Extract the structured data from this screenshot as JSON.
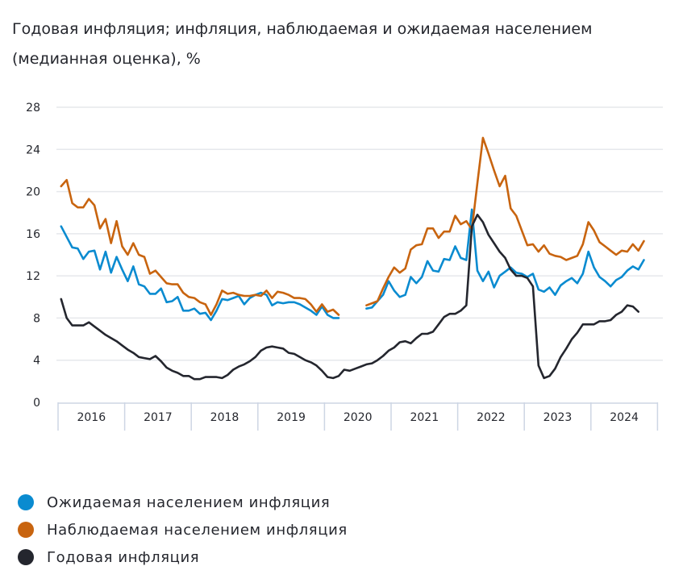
{
  "title": "Годовая инфляция; инфляция, наблюдаемая и ожидаемая населением (медианная оценка), %",
  "chart_data": {
    "type": "line",
    "title": "Годовая инфляция; инфляция, наблюдаемая и ожидаемая населением (медианная оценка), %",
    "xlabel": "",
    "ylabel": "",
    "x_start": "2016-01",
    "frequency": "monthly",
    "x_tick_labels": [
      "2016",
      "2017",
      "2018",
      "2019",
      "2020",
      "2021",
      "2022",
      "2023",
      "2024"
    ],
    "y_ticks": [
      0,
      4,
      8,
      12,
      16,
      20,
      24,
      28
    ],
    "ylim": [
      0,
      28
    ],
    "grid": true,
    "legend_position": "bottom-left",
    "series": [
      {
        "name": "Ожидаемая населением инфляция",
        "color": "#0a8bd0",
        "values": [
          16.7,
          15.7,
          14.7,
          14.6,
          13.6,
          14.3,
          14.4,
          12.6,
          14.3,
          12.3,
          13.8,
          12.6,
          11.5,
          12.9,
          11.2,
          11.0,
          10.3,
          10.3,
          10.8,
          9.5,
          9.6,
          10.0,
          8.7,
          8.7,
          8.9,
          8.4,
          8.5,
          7.8,
          8.7,
          9.8,
          9.7,
          9.9,
          10.1,
          9.3,
          9.9,
          10.2,
          10.4,
          10.2,
          9.2,
          9.5,
          9.4,
          9.5,
          9.5,
          9.3,
          9.0,
          8.7,
          8.3,
          9.1,
          8.3,
          8.0,
          8.0,
          null,
          null,
          null,
          null,
          8.9,
          9.0,
          9.6,
          10.2,
          11.5,
          10.6,
          10.0,
          10.2,
          11.9,
          11.3,
          11.9,
          13.4,
          12.5,
          12.4,
          13.6,
          13.5,
          14.8,
          13.7,
          13.5,
          18.3,
          12.5,
          11.5,
          12.4,
          10.9,
          12.0,
          12.4,
          12.8,
          12.3,
          12.2,
          11.9,
          12.2,
          10.7,
          10.5,
          10.9,
          10.2,
          11.1,
          11.5,
          11.8,
          11.3,
          12.2,
          14.3,
          12.8,
          11.9,
          11.5,
          11.0,
          11.6,
          11.9,
          12.5,
          12.9,
          12.6,
          13.5
        ]
      },
      {
        "name": "Наблюдаемая населением инфляция",
        "color": "#c8640f",
        "values": [
          20.5,
          21.1,
          18.9,
          18.5,
          18.5,
          19.3,
          18.7,
          16.5,
          17.4,
          15.1,
          17.2,
          14.8,
          14.0,
          15.1,
          14.0,
          13.8,
          12.2,
          12.5,
          11.9,
          11.3,
          11.2,
          11.2,
          10.4,
          10.0,
          9.9,
          9.5,
          9.3,
          8.3,
          9.3,
          10.6,
          10.3,
          10.4,
          10.2,
          10.1,
          10.1,
          10.2,
          10.1,
          10.6,
          9.9,
          10.5,
          10.4,
          10.2,
          9.9,
          9.9,
          9.8,
          9.3,
          8.6,
          9.3,
          8.6,
          8.8,
          8.3,
          null,
          null,
          null,
          null,
          9.2,
          9.4,
          9.6,
          10.8,
          11.9,
          12.8,
          12.3,
          12.7,
          14.5,
          14.9,
          15.0,
          16.5,
          16.5,
          15.6,
          16.2,
          16.2,
          17.7,
          16.9,
          17.2,
          16.4,
          20.8,
          25.1,
          23.6,
          22.0,
          20.5,
          21.5,
          18.4,
          17.7,
          16.3,
          14.9,
          15.0,
          14.3,
          14.9,
          14.1,
          13.9,
          13.8,
          13.5,
          13.7,
          13.9,
          15.0,
          17.1,
          16.3,
          15.2,
          14.8,
          14.4,
          14.0,
          14.4,
          14.3,
          15.0,
          14.4,
          15.3
        ]
      },
      {
        "name": "Годовая инфляция",
        "color": "#24262e",
        "values": [
          9.8,
          8.0,
          7.3,
          7.3,
          7.3,
          7.6,
          7.2,
          6.8,
          6.4,
          6.1,
          5.8,
          5.4,
          5.0,
          4.7,
          4.3,
          4.2,
          4.1,
          4.4,
          3.9,
          3.3,
          3.0,
          2.8,
          2.5,
          2.5,
          2.2,
          2.2,
          2.4,
          2.4,
          2.4,
          2.3,
          2.6,
          3.1,
          3.4,
          3.6,
          3.9,
          4.3,
          4.9,
          5.2,
          5.3,
          5.2,
          5.1,
          4.7,
          4.6,
          4.3,
          4.0,
          3.8,
          3.5,
          3.0,
          2.4,
          2.3,
          2.5,
          3.1,
          3.0,
          3.2,
          3.4,
          3.6,
          3.7,
          4.0,
          4.4,
          4.9,
          5.2,
          5.7,
          5.8,
          5.6,
          6.1,
          6.5,
          6.5,
          6.7,
          7.4,
          8.1,
          8.4,
          8.4,
          8.7,
          9.2,
          16.7,
          17.8,
          17.1,
          15.9,
          15.1,
          14.3,
          13.7,
          12.6,
          12.0,
          12.0,
          11.8,
          11.0,
          3.5,
          2.3,
          2.5,
          3.2,
          4.3,
          5.1,
          6.0,
          6.6,
          7.4,
          7.4,
          7.4,
          7.7,
          7.7,
          7.8,
          8.3,
          8.6,
          9.2,
          9.1,
          8.6
        ]
      }
    ]
  }
}
